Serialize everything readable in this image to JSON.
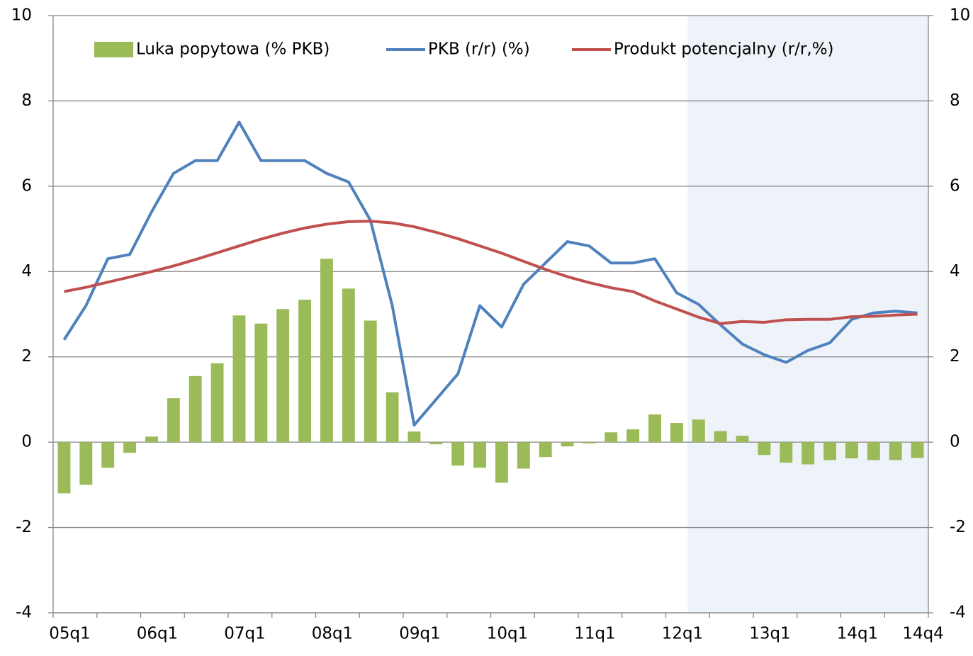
{
  "chart_data": {
    "type": "bar_line",
    "categories": [
      "05q1",
      null,
      null,
      null,
      "06q1",
      null,
      null,
      null,
      "07q1",
      null,
      null,
      null,
      "08q1",
      null,
      null,
      null,
      "09q1",
      null,
      null,
      null,
      "10q1",
      null,
      null,
      null,
      "11q1",
      null,
      null,
      null,
      "12q1",
      null,
      null,
      null,
      "13q1",
      null,
      null,
      null,
      "14q1",
      null,
      null,
      "14q4"
    ],
    "series": [
      {
        "name": "Luka popytowa (% PKB)",
        "type": "bar",
        "color": "#9bbb59",
        "values": [
          -1.2,
          -1.0,
          -0.6,
          -0.25,
          0.13,
          1.03,
          1.55,
          1.85,
          2.97,
          2.78,
          3.12,
          3.34,
          4.3,
          3.6,
          2.85,
          1.17,
          0.25,
          -0.05,
          -0.55,
          -0.6,
          -0.95,
          -0.62,
          -0.35,
          -0.1,
          -0.03,
          0.23,
          0.3,
          0.65,
          0.45,
          0.53,
          0.26,
          0.15,
          -0.3,
          -0.48,
          -0.52,
          -0.42,
          -0.38,
          -0.42,
          -0.42,
          -0.37
        ]
      },
      {
        "name": "PKB (r/r) (%)",
        "type": "line",
        "color": "#4f81bd",
        "values": [
          2.4,
          3.2,
          4.3,
          4.4,
          5.4,
          6.3,
          6.6,
          6.6,
          7.5,
          6.6,
          6.6,
          6.6,
          6.3,
          6.1,
          5.2,
          3.2,
          0.4,
          1.0,
          1.6,
          3.2,
          2.7,
          3.7,
          4.2,
          4.7,
          4.6,
          4.2,
          4.2,
          4.3,
          3.5,
          3.23,
          2.75,
          2.3,
          2.05,
          1.87,
          2.15,
          2.33,
          2.88,
          3.03,
          3.07,
          3.03
        ]
      },
      {
        "name": "Produkt potencjalny (r/r,%)",
        "type": "line",
        "color": "#c0504d",
        "values": [
          3.53,
          3.63,
          3.75,
          3.87,
          4.0,
          4.13,
          4.28,
          4.44,
          4.6,
          4.76,
          4.9,
          5.02,
          5.11,
          5.17,
          5.18,
          5.14,
          5.05,
          4.92,
          4.77,
          4.6,
          4.43,
          4.24,
          4.05,
          3.88,
          3.74,
          3.62,
          3.53,
          3.31,
          3.12,
          2.93,
          2.78,
          2.83,
          2.81,
          2.87,
          2.88,
          2.88,
          2.94,
          2.95,
          2.98,
          3.0
        ]
      }
    ],
    "ylim": [
      -4,
      10
    ],
    "yticks": [
      -4,
      -2,
      0,
      2,
      4,
      6,
      8,
      10
    ],
    "y2lim": [
      -4,
      10
    ],
    "y2ticks": [
      -4,
      -2,
      0,
      2,
      4,
      6,
      8,
      10
    ],
    "grid": true,
    "legend": "top"
  }
}
